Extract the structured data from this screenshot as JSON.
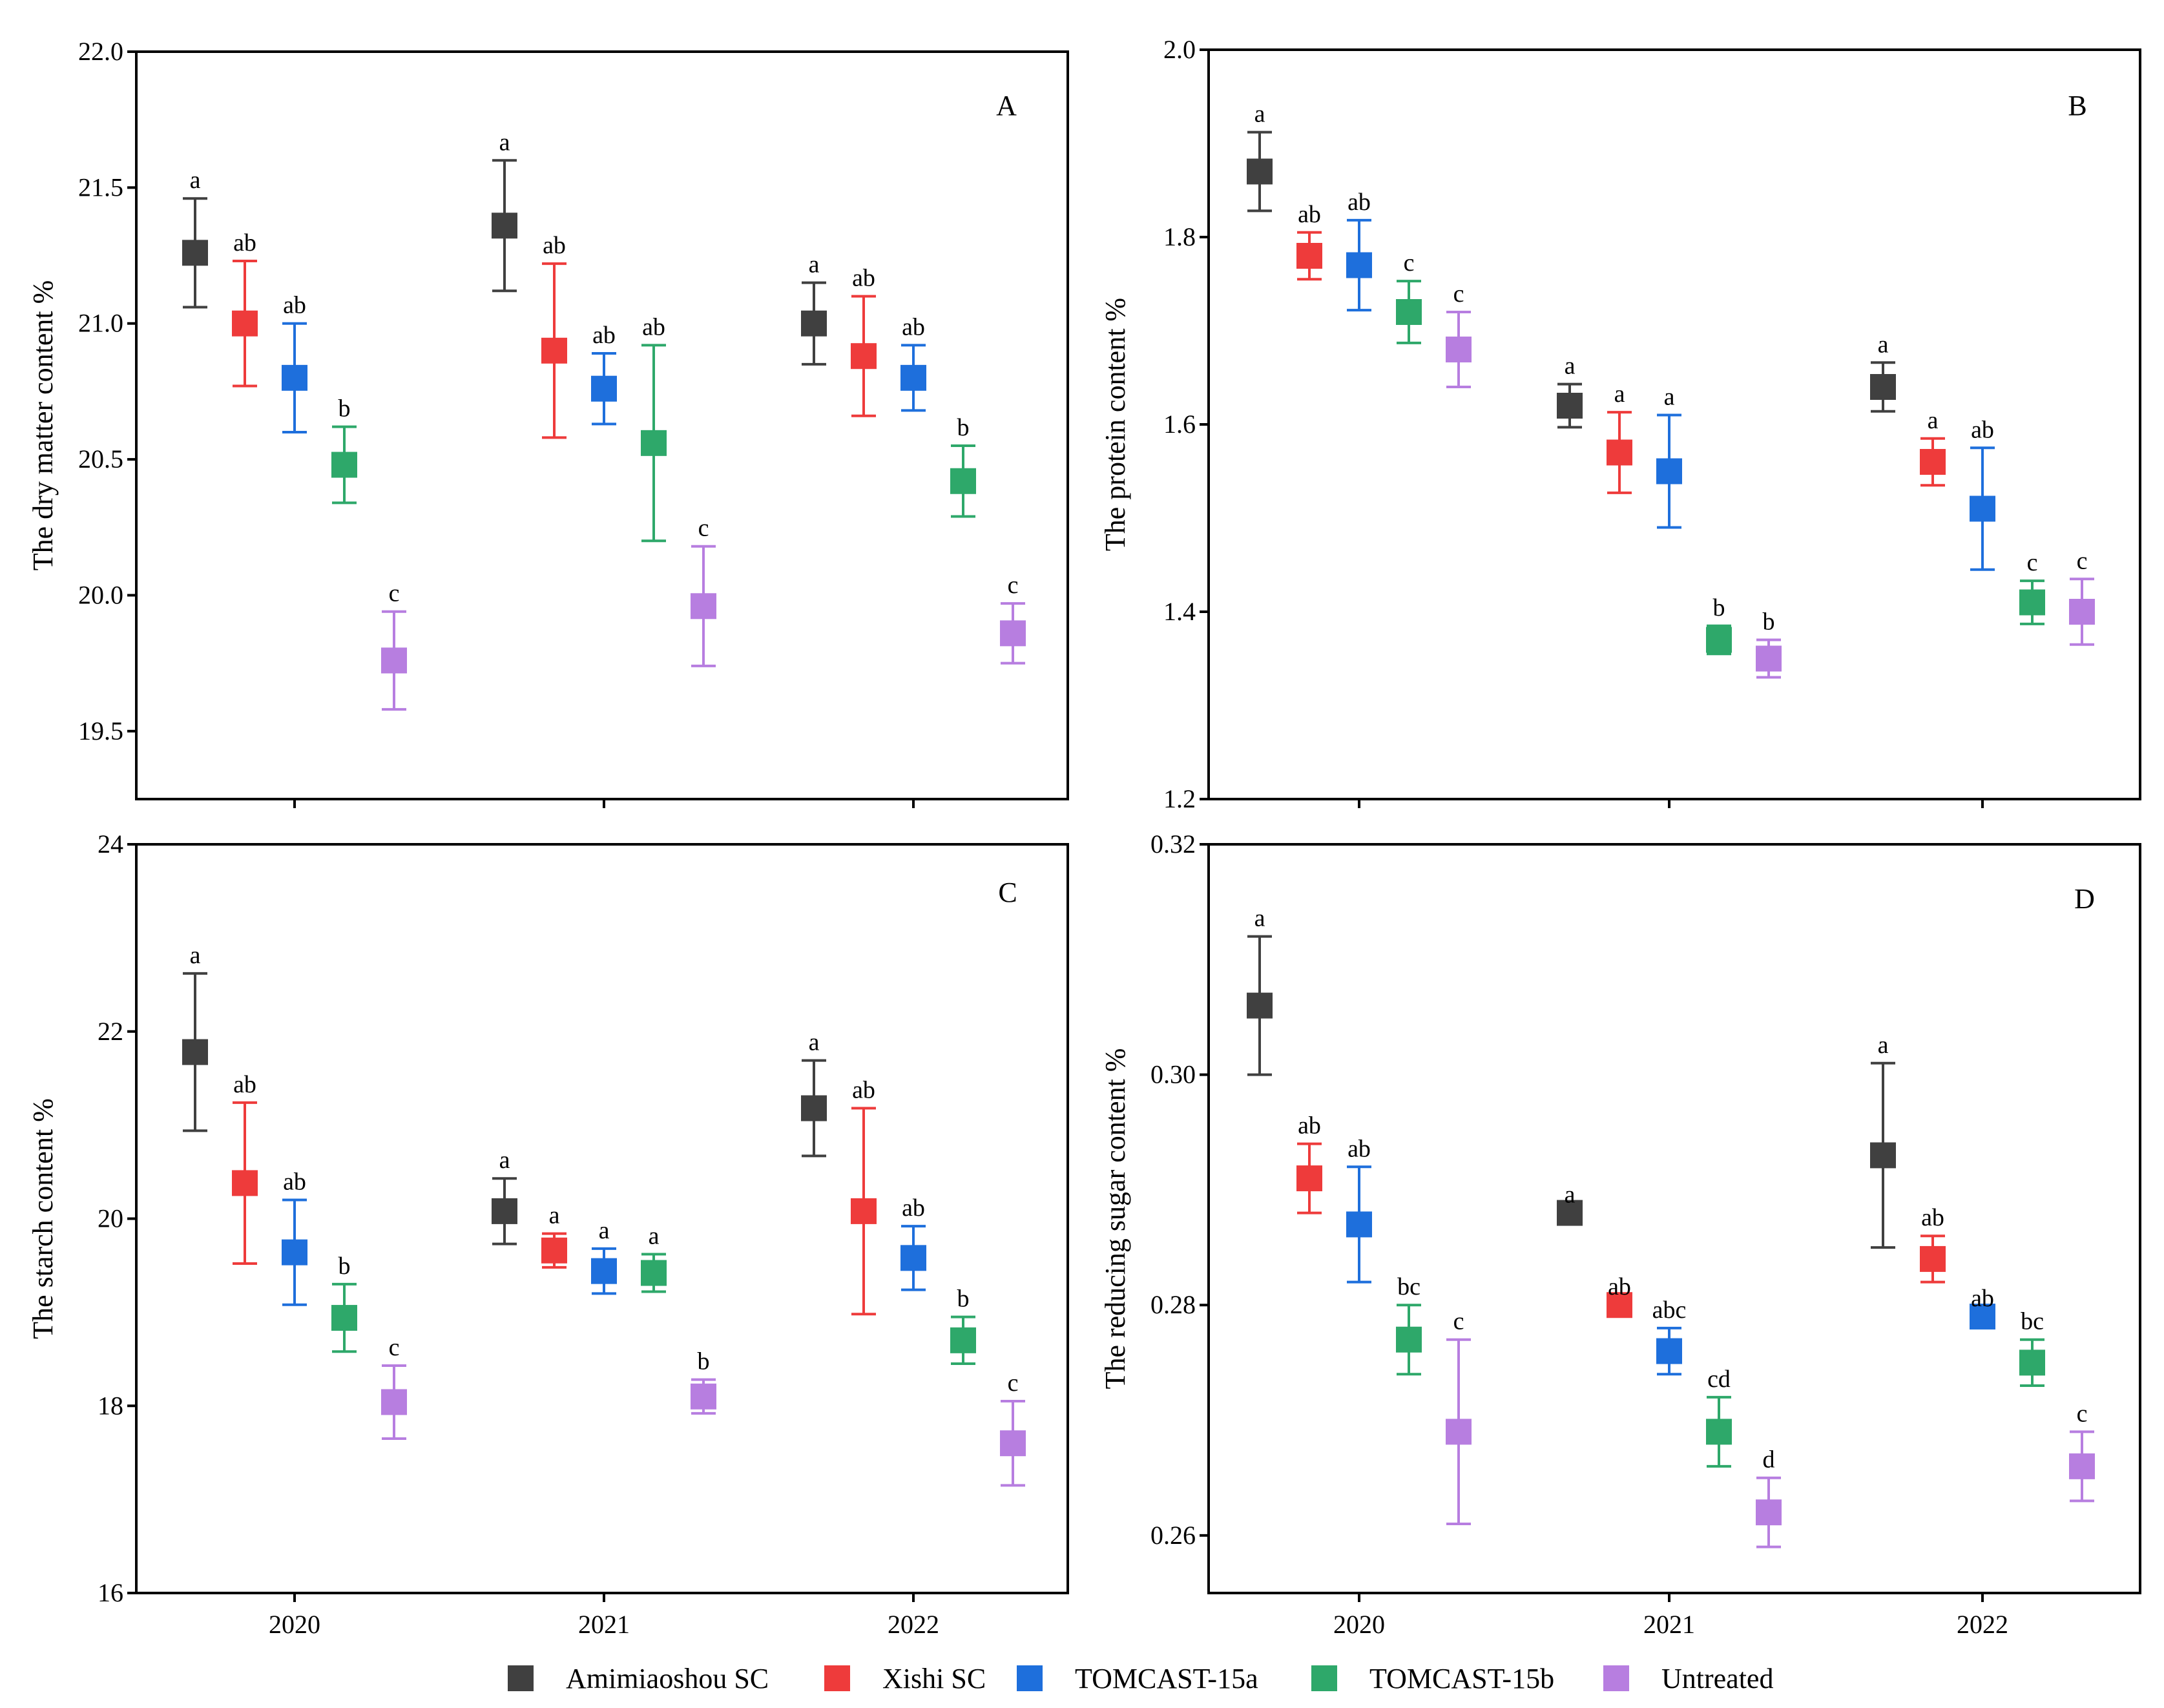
{
  "legend": [
    {
      "name": "Amimiaoshou SC",
      "color": "#404040"
    },
    {
      "name": "Xishi SC",
      "color": "#ee3b3b"
    },
    {
      "name": "TOMCAST-15a",
      "color": "#1e6fdc"
    },
    {
      "name": "TOMCAST-15b",
      "color": "#2ea86a"
    },
    {
      "name": "Untreated",
      "color": "#b77ee0"
    }
  ],
  "chart_data": [
    {
      "panel": "A",
      "type": "scatter",
      "ylabel": "The dry matter content %",
      "ylim": [
        19.25,
        22.0
      ],
      "yticks": [
        "19.5",
        "20.0",
        "20.5",
        "21.0",
        "21.5",
        "22.0"
      ],
      "categories": [
        "2020",
        "2021",
        "2022"
      ],
      "series": [
        {
          "name": "Amimiaoshou SC",
          "values": [
            21.26,
            21.36,
            21.0
          ],
          "lower": [
            21.06,
            21.12,
            20.85
          ],
          "upper": [
            21.46,
            21.6,
            21.15
          ],
          "labels": [
            "a",
            "a",
            "a"
          ]
        },
        {
          "name": "Xishi SC",
          "values": [
            21.0,
            20.9,
            20.88
          ],
          "lower": [
            20.77,
            20.58,
            20.66
          ],
          "upper": [
            21.23,
            21.22,
            21.1
          ],
          "labels": [
            "ab",
            "ab",
            "ab"
          ]
        },
        {
          "name": "TOMCAST-15a",
          "values": [
            20.8,
            20.76,
            20.8
          ],
          "lower": [
            20.6,
            20.63,
            20.68
          ],
          "upper": [
            21.0,
            20.89,
            20.92
          ],
          "labels": [
            "ab",
            "ab",
            "ab"
          ]
        },
        {
          "name": "TOMCAST-15b",
          "values": [
            20.48,
            20.56,
            20.42
          ],
          "lower": [
            20.34,
            20.2,
            20.29
          ],
          "upper": [
            20.62,
            20.92,
            20.55
          ],
          "labels": [
            "b",
            "ab",
            "b"
          ]
        },
        {
          "name": "Untreated",
          "values": [
            19.76,
            19.96,
            19.86
          ],
          "lower": [
            19.58,
            19.74,
            19.75
          ],
          "upper": [
            19.94,
            20.18,
            19.97
          ],
          "labels": [
            "c",
            "c",
            "c"
          ]
        }
      ]
    },
    {
      "panel": "B",
      "type": "scatter",
      "ylabel": "The protein content %",
      "ylim": [
        1.2,
        2.0
      ],
      "yticks": [
        "1.2",
        "1.4",
        "1.6",
        "1.8",
        "2.0"
      ],
      "categories": [
        "2020",
        "2021",
        "2022"
      ],
      "series": [
        {
          "name": "Amimiaoshou SC",
          "values": [
            1.87,
            1.62,
            1.64
          ],
          "lower": [
            1.828,
            1.597,
            1.614
          ],
          "upper": [
            1.912,
            1.643,
            1.666
          ],
          "labels": [
            "a",
            "a",
            "a"
          ]
        },
        {
          "name": "Xishi SC",
          "values": [
            1.78,
            1.57,
            1.56
          ],
          "lower": [
            1.755,
            1.527,
            1.535
          ],
          "upper": [
            1.805,
            1.613,
            1.585
          ],
          "labels": [
            "ab",
            "a",
            "a"
          ]
        },
        {
          "name": "TOMCAST-15a",
          "values": [
            1.77,
            1.55,
            1.51
          ],
          "lower": [
            1.722,
            1.49,
            1.445
          ],
          "upper": [
            1.818,
            1.61,
            1.575
          ],
          "labels": [
            "ab",
            "a",
            "ab"
          ]
        },
        {
          "name": "TOMCAST-15b",
          "values": [
            1.72,
            1.37,
            1.41
          ],
          "lower": [
            1.687,
            1.355,
            1.387
          ],
          "upper": [
            1.753,
            1.385,
            1.433
          ],
          "labels": [
            "c",
            "b",
            "c"
          ]
        },
        {
          "name": "Untreated",
          "values": [
            1.68,
            1.35,
            1.4
          ],
          "lower": [
            1.64,
            1.33,
            1.365
          ],
          "upper": [
            1.72,
            1.37,
            1.435
          ],
          "labels": [
            "c",
            "b",
            "c"
          ]
        }
      ]
    },
    {
      "panel": "C",
      "type": "scatter",
      "ylabel": "The starch content %",
      "ylim": [
        16,
        24
      ],
      "yticks": [
        "16",
        "18",
        "20",
        "22",
        "24"
      ],
      "categories": [
        "2020",
        "2021",
        "2022"
      ],
      "series": [
        {
          "name": "Amimiaoshou SC",
          "values": [
            21.78,
            20.08,
            21.18
          ],
          "lower": [
            20.94,
            19.73,
            20.67
          ],
          "upper": [
            22.62,
            20.43,
            21.69
          ],
          "labels": [
            "a",
            "a",
            "a"
          ]
        },
        {
          "name": "Xishi SC",
          "values": [
            20.38,
            19.66,
            20.08
          ],
          "lower": [
            19.52,
            19.48,
            18.98
          ],
          "upper": [
            21.24,
            19.84,
            21.18
          ],
          "labels": [
            "ab",
            "a",
            "ab"
          ]
        },
        {
          "name": "TOMCAST-15a",
          "values": [
            19.64,
            19.44,
            19.58
          ],
          "lower": [
            19.08,
            19.2,
            19.24
          ],
          "upper": [
            20.2,
            19.68,
            19.92
          ],
          "labels": [
            "ab",
            "a",
            "ab"
          ]
        },
        {
          "name": "TOMCAST-15b",
          "values": [
            18.94,
            19.42,
            18.7
          ],
          "lower": [
            18.58,
            19.22,
            18.45
          ],
          "upper": [
            19.3,
            19.62,
            18.95
          ],
          "labels": [
            "b",
            "a",
            "b"
          ]
        },
        {
          "name": "Untreated",
          "values": [
            18.04,
            18.1,
            17.6
          ],
          "lower": [
            17.65,
            17.92,
            17.15
          ],
          "upper": [
            18.43,
            18.28,
            18.05
          ],
          "labels": [
            "c",
            "b",
            "c"
          ]
        }
      ]
    },
    {
      "panel": "D",
      "type": "scatter",
      "ylabel": "The reducing sugar content %",
      "ylim": [
        0.255,
        0.32
      ],
      "yticks": [
        "0.26",
        "0.28",
        "0.30",
        "0.32"
      ],
      "categories": [
        "2020",
        "2021",
        "2022"
      ],
      "series": [
        {
          "name": "Amimiaoshou SC",
          "values": [
            0.306,
            0.288,
            0.293
          ],
          "lower": [
            0.3,
            0.288,
            0.285
          ],
          "upper": [
            0.312,
            0.288,
            0.301
          ],
          "labels": [
            "a",
            "a",
            "a"
          ]
        },
        {
          "name": "Xishi SC",
          "values": [
            0.291,
            0.28,
            0.284
          ],
          "lower": [
            0.288,
            0.28,
            0.282
          ],
          "upper": [
            0.294,
            0.28,
            0.286
          ],
          "labels": [
            "ab",
            "ab",
            "ab"
          ]
        },
        {
          "name": "TOMCAST-15a",
          "values": [
            0.287,
            0.276,
            0.279
          ],
          "lower": [
            0.282,
            0.274,
            0.279
          ],
          "upper": [
            0.292,
            0.278,
            0.279
          ],
          "labels": [
            "ab",
            "abc",
            "ab"
          ]
        },
        {
          "name": "TOMCAST-15b",
          "values": [
            0.277,
            0.269,
            0.275
          ],
          "lower": [
            0.274,
            0.266,
            0.273
          ],
          "upper": [
            0.28,
            0.272,
            0.277
          ],
          "labels": [
            "bc",
            "cd",
            "bc"
          ]
        },
        {
          "name": "Untreated",
          "values": [
            0.269,
            0.262,
            0.266
          ],
          "lower": [
            0.261,
            0.259,
            0.263
          ],
          "upper": [
            0.277,
            0.265,
            0.269
          ],
          "labels": [
            "c",
            "d",
            "c"
          ]
        }
      ]
    }
  ]
}
